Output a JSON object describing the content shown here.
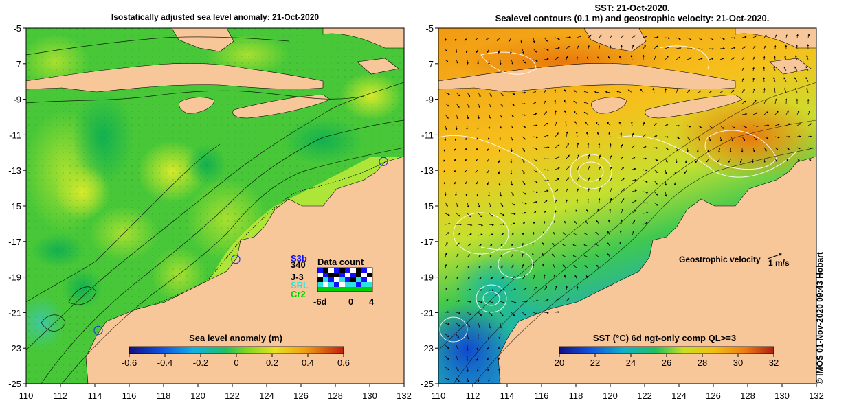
{
  "left_map": {
    "title": "Isostatically adjusted sea level anomaly: 21-Oct-2020",
    "colorbar_label": "Sea level anomaly (m)",
    "colorbar_ticks": [
      "-0.6",
      "-0.4",
      "-0.2",
      "0",
      "0.2",
      "0.4",
      "0.6"
    ],
    "colorbar_range": [
      -0.6,
      0.6
    ],
    "data_count": {
      "title": "Data count",
      "satellites": [
        {
          "name": "S3b",
          "color": "#1010ff"
        },
        {
          "name": "J-3",
          "color": "#000000"
        },
        {
          "name": "SRL",
          "color": "#30e0e0"
        },
        {
          "name": "Cr2",
          "color": "#00d000"
        }
      ],
      "overlap_label": "340",
      "axis_ticks": [
        "-6d",
        "0",
        "4"
      ]
    },
    "tide_gauges": [
      {
        "lon": 130.8,
        "lat": -12.5
      },
      {
        "lon": 122.2,
        "lat": -18.0
      },
      {
        "lon": 114.2,
        "lat": -22.0
      }
    ]
  },
  "right_map": {
    "title_line1": "SST: 21-Oct-2020.",
    "title_line2": "Sealevel contours (0.1 m) and geostrophic velocity: 21-Oct-2020.",
    "colorbar_label": "SST (°C) 6d ngt-only comp QL>=3",
    "colorbar_ticks": [
      "20",
      "22",
      "24",
      "26",
      "28",
      "30",
      "32"
    ],
    "colorbar_range": [
      20,
      32
    ],
    "velocity_label": "Geostrophic velocity",
    "velocity_scale": "1 m/s"
  },
  "axes": {
    "lon_ticks": [
      "110",
      "112",
      "114",
      "116",
      "118",
      "120",
      "122",
      "124",
      "126",
      "128",
      "130",
      "132"
    ],
    "lat_ticks": [
      "-5",
      "-7",
      "-9",
      "-11",
      "-13",
      "-15",
      "-17",
      "-19",
      "-21",
      "-23",
      "-25"
    ],
    "lon_range": [
      110,
      132
    ],
    "lat_range": [
      -5,
      -25
    ]
  },
  "credit": "© IMOS 01-Nov-2020 09:43 Hobart",
  "colors": {
    "land": "#f7c79a",
    "frame": "#000000"
  }
}
